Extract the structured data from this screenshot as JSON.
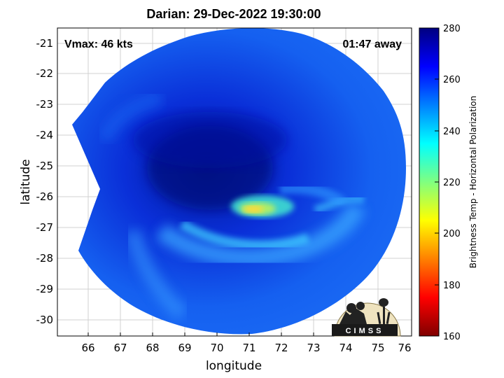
{
  "title": "Darian: 29-Dec-2022 19:30:00",
  "inset_left": "Vmax: 46 kts",
  "inset_right": "01:47 away",
  "xlabel": "longitude",
  "ylabel": "latitude",
  "x_ticks": [
    "66",
    "67",
    "68",
    "69",
    "70",
    "71",
    "72",
    "73",
    "74",
    "75",
    "76"
  ],
  "y_ticks": [
    "-21",
    "-22",
    "-23",
    "-24",
    "-25",
    "-26",
    "-27",
    "-28",
    "-29",
    "-30"
  ],
  "colorbar": {
    "title": "Brightness Temp - Horizontal Polarization",
    "ticks": [
      "280",
      "260",
      "240",
      "220",
      "200",
      "180",
      "160"
    ],
    "stops": [
      "#800000",
      "#ff0000",
      "#ff8000",
      "#ffff00",
      "#80ff80",
      "#00ffff",
      "#0080ff",
      "#0000ff",
      "#000080"
    ]
  },
  "logo": {
    "text": "CIMSS"
  },
  "map": {
    "lon_range": [
      65.3,
      76.2
    ],
    "lat_range": [
      -30.5,
      -20.6
    ],
    "grid": true,
    "colormap": "jet",
    "storm_center": {
      "lon": 70.1,
      "lat": -25.1
    },
    "warm_band_max": {
      "lon": 71.1,
      "lat": -26.4,
      "value_approx": 212
    }
  }
}
